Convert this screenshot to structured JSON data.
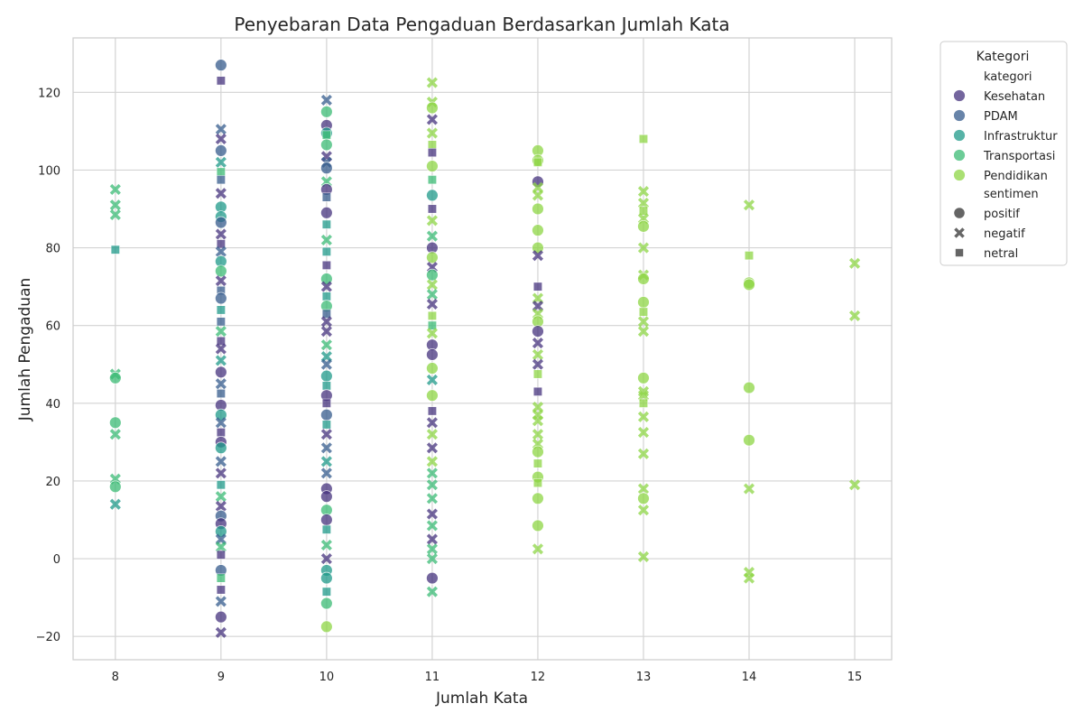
{
  "chart_data": {
    "type": "scatter",
    "title": "Penyebaran Data Pengaduan Berdasarkan Jumlah Kata",
    "xlabel": "Jumlah Kata",
    "ylabel": "Jumlah Pengaduan",
    "xlim": [
      7.6,
      15.35
    ],
    "ylim": [
      -26,
      134
    ],
    "xticks": [
      "8",
      "9",
      "10",
      "11",
      "12",
      "13",
      "14",
      "15"
    ],
    "yticks": [
      "−20",
      "0",
      "20",
      "40",
      "60",
      "80",
      "100",
      "120"
    ],
    "grid": true,
    "legend": {
      "title": "Kategori",
      "placement": "outside-top-right",
      "hue_header": "kategori",
      "style_header": "sentimen",
      "categories": [
        {
          "name": "Kesehatan",
          "color": "#46337e"
        },
        {
          "name": "PDAM",
          "color": "#365c8d"
        },
        {
          "name": "Infrastruktur",
          "color": "#1f9a8a"
        },
        {
          "name": "Transportasi",
          "color": "#3bbb75"
        },
        {
          "name": "Pendidikan",
          "color": "#8ed645"
        }
      ],
      "sentiments": [
        {
          "name": "positif",
          "marker": "circle"
        },
        {
          "name": "negatif",
          "marker": "x"
        },
        {
          "name": "netral",
          "marker": "square"
        }
      ]
    },
    "points": [
      [
        8,
        95,
        "Transportasi",
        "negatif"
      ],
      [
        8,
        91,
        "Transportasi",
        "negatif"
      ],
      [
        8,
        88.5,
        "Transportasi",
        "negatif"
      ],
      [
        8,
        79.5,
        "Infrastruktur",
        "netral"
      ],
      [
        8,
        47.5,
        "Transportasi",
        "negatif"
      ],
      [
        8,
        46.5,
        "Transportasi",
        "positif"
      ],
      [
        8,
        35,
        "Transportasi",
        "positif"
      ],
      [
        8,
        32,
        "Transportasi",
        "negatif"
      ],
      [
        8,
        20.5,
        "Transportasi",
        "negatif"
      ],
      [
        8,
        18.5,
        "Transportasi",
        "positif"
      ],
      [
        8,
        14,
        "Infrastruktur",
        "negatif"
      ],
      [
        9,
        127,
        "PDAM",
        "positif"
      ],
      [
        9,
        123,
        "Kesehatan",
        "netral"
      ],
      [
        9,
        110.5,
        "PDAM",
        "negatif"
      ],
      [
        9,
        108,
        "Kesehatan",
        "negatif"
      ],
      [
        9,
        105,
        "PDAM",
        "positif"
      ],
      [
        9,
        102,
        "Infrastruktur",
        "negatif"
      ],
      [
        9,
        99.5,
        "Transportasi",
        "netral"
      ],
      [
        9,
        97.5,
        "PDAM",
        "netral"
      ],
      [
        9,
        94,
        "Kesehatan",
        "negatif"
      ],
      [
        9,
        90.5,
        "Infrastruktur",
        "positif"
      ],
      [
        9,
        88,
        "Infrastruktur",
        "positif"
      ],
      [
        9,
        86.5,
        "PDAM",
        "positif"
      ],
      [
        9,
        83.5,
        "Kesehatan",
        "negatif"
      ],
      [
        9,
        81,
        "Kesehatan",
        "netral"
      ],
      [
        9,
        79,
        "PDAM",
        "negatif"
      ],
      [
        9,
        76.5,
        "Infrastruktur",
        "positif"
      ],
      [
        9,
        74,
        "Transportasi",
        "positif"
      ],
      [
        9,
        71.5,
        "Kesehatan",
        "negatif"
      ],
      [
        9,
        69,
        "PDAM",
        "netral"
      ],
      [
        9,
        67,
        "PDAM",
        "positif"
      ],
      [
        9,
        64,
        "Infrastruktur",
        "netral"
      ],
      [
        9,
        61,
        "PDAM",
        "netral"
      ],
      [
        9,
        58.5,
        "Transportasi",
        "negatif"
      ],
      [
        9,
        56,
        "Kesehatan",
        "netral"
      ],
      [
        9,
        54,
        "Kesehatan",
        "negatif"
      ],
      [
        9,
        51,
        "Infrastruktur",
        "negatif"
      ],
      [
        9,
        48,
        "Kesehatan",
        "positif"
      ],
      [
        9,
        45,
        "PDAM",
        "negatif"
      ],
      [
        9,
        42.5,
        "PDAM",
        "netral"
      ],
      [
        9,
        39.5,
        "Kesehatan",
        "positif"
      ],
      [
        9,
        37,
        "Infrastruktur",
        "positif"
      ],
      [
        9,
        35,
        "PDAM",
        "negatif"
      ],
      [
        9,
        32.5,
        "Kesehatan",
        "netral"
      ],
      [
        9,
        30,
        "Kesehatan",
        "positif"
      ],
      [
        9,
        28.5,
        "Infrastruktur",
        "positif"
      ],
      [
        9,
        25,
        "PDAM",
        "negatif"
      ],
      [
        9,
        22,
        "Kesehatan",
        "negatif"
      ],
      [
        9,
        19,
        "Infrastruktur",
        "netral"
      ],
      [
        9,
        16,
        "Transportasi",
        "negatif"
      ],
      [
        9,
        13.5,
        "Kesehatan",
        "negatif"
      ],
      [
        9,
        11,
        "PDAM",
        "positif"
      ],
      [
        9,
        9,
        "Kesehatan",
        "positif"
      ],
      [
        9,
        7,
        "Infrastruktur",
        "positif"
      ],
      [
        9,
        5,
        "PDAM",
        "negatif"
      ],
      [
        9,
        3,
        "Transportasi",
        "negatif"
      ],
      [
        9,
        1,
        "Kesehatan",
        "netral"
      ],
      [
        9,
        -3,
        "PDAM",
        "positif"
      ],
      [
        9,
        -5,
        "Transportasi",
        "netral"
      ],
      [
        9,
        -8,
        "Kesehatan",
        "netral"
      ],
      [
        9,
        -11,
        "PDAM",
        "negatif"
      ],
      [
        9,
        -15,
        "Kesehatan",
        "positif"
      ],
      [
        9,
        -19,
        "Kesehatan",
        "negatif"
      ],
      [
        10,
        118,
        "PDAM",
        "negatif"
      ],
      [
        10,
        115,
        "Transportasi",
        "positif"
      ],
      [
        10,
        111.5,
        "Kesehatan",
        "positif"
      ],
      [
        10,
        109.5,
        "Infrastruktur",
        "positif"
      ],
      [
        10,
        109,
        "Transportasi",
        "netral"
      ],
      [
        10,
        106.5,
        "Transportasi",
        "positif"
      ],
      [
        10,
        103.5,
        "Kesehatan",
        "negatif"
      ],
      [
        10,
        102,
        "PDAM",
        "negatif"
      ],
      [
        10,
        100.5,
        "PDAM",
        "positif"
      ],
      [
        10,
        97,
        "Transportasi",
        "negatif"
      ],
      [
        10,
        95,
        "Kesehatan",
        "positif"
      ],
      [
        10,
        93,
        "PDAM",
        "netral"
      ],
      [
        10,
        89,
        "Kesehatan",
        "positif"
      ],
      [
        10,
        86,
        "Infrastruktur",
        "netral"
      ],
      [
        10,
        82,
        "Transportasi",
        "negatif"
      ],
      [
        10,
        79,
        "Infrastruktur",
        "netral"
      ],
      [
        10,
        75.5,
        "Kesehatan",
        "netral"
      ],
      [
        10,
        72,
        "Transportasi",
        "positif"
      ],
      [
        10,
        70,
        "Kesehatan",
        "negatif"
      ],
      [
        10,
        67.5,
        "Infrastruktur",
        "netral"
      ],
      [
        10,
        65,
        "Transportasi",
        "positif"
      ],
      [
        10,
        63,
        "PDAM",
        "netral"
      ],
      [
        10,
        61,
        "Kesehatan",
        "negatif"
      ],
      [
        10,
        58.5,
        "Kesehatan",
        "negatif"
      ],
      [
        10,
        55,
        "Transportasi",
        "negatif"
      ],
      [
        10,
        52,
        "Infrastruktur",
        "negatif"
      ],
      [
        10,
        50,
        "PDAM",
        "negatif"
      ],
      [
        10,
        47,
        "Infrastruktur",
        "positif"
      ],
      [
        10,
        44.5,
        "Infrastruktur",
        "netral"
      ],
      [
        10,
        42,
        "Kesehatan",
        "positif"
      ],
      [
        10,
        40,
        "Kesehatan",
        "netral"
      ],
      [
        10,
        37,
        "PDAM",
        "positif"
      ],
      [
        10,
        34.5,
        "Infrastruktur",
        "netral"
      ],
      [
        10,
        32,
        "Kesehatan",
        "negatif"
      ],
      [
        10,
        28.5,
        "PDAM",
        "negatif"
      ],
      [
        10,
        25,
        "Infrastruktur",
        "negatif"
      ],
      [
        10,
        22,
        "PDAM",
        "negatif"
      ],
      [
        10,
        18,
        "Kesehatan",
        "positif"
      ],
      [
        10,
        16,
        "Kesehatan",
        "positif"
      ],
      [
        10,
        12.5,
        "Transportasi",
        "positif"
      ],
      [
        10,
        10,
        "Kesehatan",
        "positif"
      ],
      [
        10,
        7.5,
        "Infrastruktur",
        "netral"
      ],
      [
        10,
        3.5,
        "Transportasi",
        "negatif"
      ],
      [
        10,
        0,
        "Kesehatan",
        "negatif"
      ],
      [
        10,
        -3,
        "Infrastruktur",
        "positif"
      ],
      [
        10,
        -5,
        "Infrastruktur",
        "positif"
      ],
      [
        10,
        -8.5,
        "Infrastruktur",
        "netral"
      ],
      [
        10,
        -11.5,
        "Transportasi",
        "positif"
      ],
      [
        10,
        -17.5,
        "Pendidikan",
        "positif"
      ],
      [
        11,
        122.5,
        "Pendidikan",
        "negatif"
      ],
      [
        11,
        117.5,
        "Pendidikan",
        "negatif"
      ],
      [
        11,
        116,
        "Pendidikan",
        "positif"
      ],
      [
        11,
        113,
        "Kesehatan",
        "negatif"
      ],
      [
        11,
        109.5,
        "Pendidikan",
        "negatif"
      ],
      [
        11,
        106.5,
        "Pendidikan",
        "netral"
      ],
      [
        11,
        104.5,
        "Kesehatan",
        "netral"
      ],
      [
        11,
        101,
        "Pendidikan",
        "positif"
      ],
      [
        11,
        97.5,
        "Transportasi",
        "netral"
      ],
      [
        11,
        93.5,
        "Infrastruktur",
        "positif"
      ],
      [
        11,
        90,
        "Kesehatan",
        "netral"
      ],
      [
        11,
        87,
        "Pendidikan",
        "negatif"
      ],
      [
        11,
        83,
        "Transportasi",
        "negatif"
      ],
      [
        11,
        80,
        "Kesehatan",
        "positif"
      ],
      [
        11,
        77.5,
        "Pendidikan",
        "positif"
      ],
      [
        11,
        75,
        "Kesehatan",
        "negatif"
      ],
      [
        11,
        73,
        "Transportasi",
        "positif"
      ],
      [
        11,
        70.5,
        "Pendidikan",
        "negatif"
      ],
      [
        11,
        68,
        "Transportasi",
        "negatif"
      ],
      [
        11,
        65.5,
        "Kesehatan",
        "negatif"
      ],
      [
        11,
        62.5,
        "Pendidikan",
        "netral"
      ],
      [
        11,
        60,
        "Transportasi",
        "netral"
      ],
      [
        11,
        58,
        "Pendidikan",
        "negatif"
      ],
      [
        11,
        55,
        "Kesehatan",
        "positif"
      ],
      [
        11,
        52.5,
        "Kesehatan",
        "positif"
      ],
      [
        11,
        49,
        "Pendidikan",
        "positif"
      ],
      [
        11,
        46,
        "Infrastruktur",
        "negatif"
      ],
      [
        11,
        42,
        "Pendidikan",
        "positif"
      ],
      [
        11,
        38,
        "Kesehatan",
        "netral"
      ],
      [
        11,
        35,
        "Kesehatan",
        "negatif"
      ],
      [
        11,
        32,
        "Pendidikan",
        "negatif"
      ],
      [
        11,
        28.5,
        "Kesehatan",
        "negatif"
      ],
      [
        11,
        25,
        "Pendidikan",
        "negatif"
      ],
      [
        11,
        22,
        "Transportasi",
        "negatif"
      ],
      [
        11,
        19,
        "Transportasi",
        "negatif"
      ],
      [
        11,
        15.5,
        "Transportasi",
        "negatif"
      ],
      [
        11,
        11.5,
        "Kesehatan",
        "negatif"
      ],
      [
        11,
        8.5,
        "Transportasi",
        "negatif"
      ],
      [
        11,
        5,
        "Kesehatan",
        "negatif"
      ],
      [
        11,
        2.5,
        "Transportasi",
        "negatif"
      ],
      [
        11,
        0,
        "Transportasi",
        "negatif"
      ],
      [
        11,
        -5,
        "Kesehatan",
        "positif"
      ],
      [
        11,
        -8.5,
        "Transportasi",
        "negatif"
      ],
      [
        12,
        105,
        "Pendidikan",
        "positif"
      ],
      [
        12,
        102.5,
        "Pendidikan",
        "positif"
      ],
      [
        12,
        102,
        "Pendidikan",
        "netral"
      ],
      [
        12,
        97,
        "Kesehatan",
        "positif"
      ],
      [
        12,
        95.5,
        "Pendidikan",
        "negatif"
      ],
      [
        12,
        93.5,
        "Pendidikan",
        "negatif"
      ],
      [
        12,
        90,
        "Pendidikan",
        "positif"
      ],
      [
        12,
        84.5,
        "Pendidikan",
        "positif"
      ],
      [
        12,
        80,
        "Pendidikan",
        "positif"
      ],
      [
        12,
        78,
        "Kesehatan",
        "negatif"
      ],
      [
        12,
        70,
        "Kesehatan",
        "netral"
      ],
      [
        12,
        67,
        "Pendidikan",
        "negatif"
      ],
      [
        12,
        65,
        "Kesehatan",
        "negatif"
      ],
      [
        12,
        63,
        "Pendidikan",
        "negatif"
      ],
      [
        12,
        61,
        "Pendidikan",
        "positif"
      ],
      [
        12,
        58.5,
        "Kesehatan",
        "positif"
      ],
      [
        12,
        55.5,
        "Kesehatan",
        "negatif"
      ],
      [
        12,
        52.5,
        "Pendidikan",
        "negatif"
      ],
      [
        12,
        50,
        "Kesehatan",
        "negatif"
      ],
      [
        12,
        47.5,
        "Pendidikan",
        "netral"
      ],
      [
        12,
        43,
        "Kesehatan",
        "netral"
      ],
      [
        12,
        39,
        "Pendidikan",
        "negatif"
      ],
      [
        12,
        37,
        "Pendidikan",
        "negatif"
      ],
      [
        12,
        35.5,
        "Pendidikan",
        "negatif"
      ],
      [
        12,
        32,
        "Pendidikan",
        "negatif"
      ],
      [
        12,
        29.5,
        "Pendidikan",
        "negatif"
      ],
      [
        12,
        27.5,
        "Pendidikan",
        "positif"
      ],
      [
        12,
        24.5,
        "Pendidikan",
        "netral"
      ],
      [
        12,
        21,
        "Pendidikan",
        "positif"
      ],
      [
        12,
        19.5,
        "Pendidikan",
        "netral"
      ],
      [
        12,
        15.5,
        "Pendidikan",
        "positif"
      ],
      [
        12,
        8.5,
        "Pendidikan",
        "positif"
      ],
      [
        12,
        2.5,
        "Pendidikan",
        "negatif"
      ],
      [
        13,
        108,
        "Pendidikan",
        "netral"
      ],
      [
        13,
        94.5,
        "Pendidikan",
        "negatif"
      ],
      [
        13,
        91.5,
        "Pendidikan",
        "negatif"
      ],
      [
        13,
        89.5,
        "Pendidikan",
        "netral"
      ],
      [
        13,
        87.5,
        "Pendidikan",
        "negatif"
      ],
      [
        13,
        85.5,
        "Pendidikan",
        "positif"
      ],
      [
        13,
        80,
        "Pendidikan",
        "negatif"
      ],
      [
        13,
        73,
        "Pendidikan",
        "negatif"
      ],
      [
        13,
        72,
        "Pendidikan",
        "positif"
      ],
      [
        13,
        66,
        "Pendidikan",
        "positif"
      ],
      [
        13,
        63.5,
        "Pendidikan",
        "netral"
      ],
      [
        13,
        61,
        "Pendidikan",
        "negatif"
      ],
      [
        13,
        58.5,
        "Pendidikan",
        "negatif"
      ],
      [
        13,
        46.5,
        "Pendidikan",
        "positif"
      ],
      [
        13,
        43,
        "Pendidikan",
        "negatif"
      ],
      [
        13,
        42,
        "Pendidikan",
        "negatif"
      ],
      [
        13,
        40,
        "Pendidikan",
        "netral"
      ],
      [
        13,
        36.5,
        "Pendidikan",
        "negatif"
      ],
      [
        13,
        32.5,
        "Pendidikan",
        "negatif"
      ],
      [
        13,
        27,
        "Pendidikan",
        "negatif"
      ],
      [
        13,
        18,
        "Pendidikan",
        "negatif"
      ],
      [
        13,
        15.5,
        "Pendidikan",
        "positif"
      ],
      [
        13,
        12.5,
        "Pendidikan",
        "negatif"
      ],
      [
        13,
        0.5,
        "Pendidikan",
        "negatif"
      ],
      [
        14,
        91,
        "Pendidikan",
        "negatif"
      ],
      [
        14,
        78,
        "Pendidikan",
        "netral"
      ],
      [
        14,
        71,
        "Pendidikan",
        "positif"
      ],
      [
        14,
        70.5,
        "Pendidikan",
        "positif"
      ],
      [
        14,
        44,
        "Pendidikan",
        "positif"
      ],
      [
        14,
        30.5,
        "Pendidikan",
        "positif"
      ],
      [
        14,
        18,
        "Pendidikan",
        "negatif"
      ],
      [
        14,
        -3.5,
        "Pendidikan",
        "negatif"
      ],
      [
        14,
        -5,
        "Pendidikan",
        "negatif"
      ],
      [
        15,
        76,
        "Pendidikan",
        "negatif"
      ],
      [
        15,
        62.5,
        "Pendidikan",
        "negatif"
      ],
      [
        15,
        19,
        "Pendidikan",
        "negatif"
      ]
    ]
  }
}
